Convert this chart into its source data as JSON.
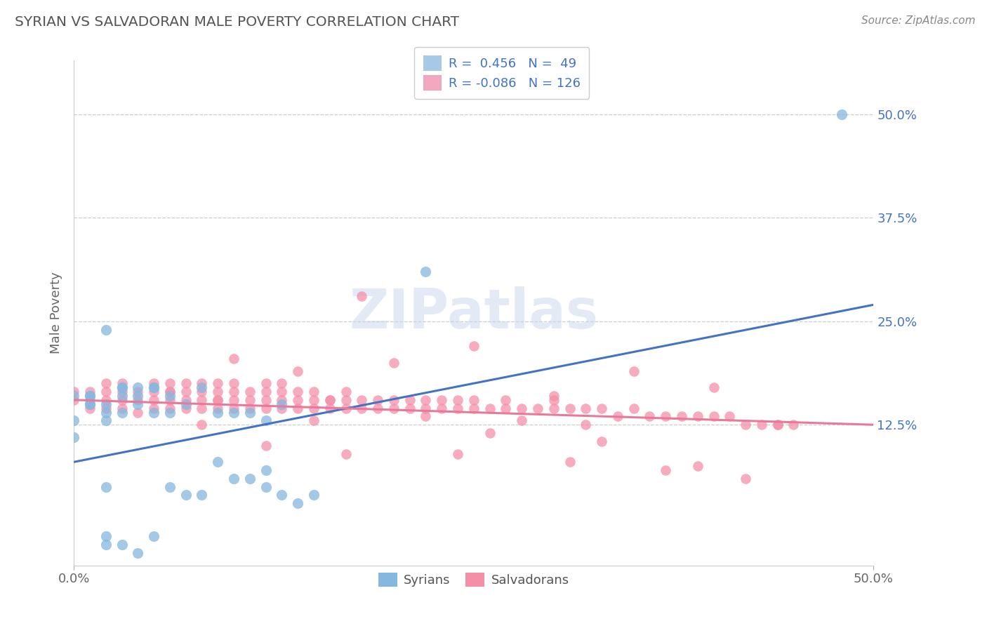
{
  "title": "SYRIAN VS SALVADORAN MALE POVERTY CORRELATION CHART",
  "source": "Source: ZipAtlas.com",
  "ylabel": "Male Poverty",
  "xlim": [
    0.0,
    0.5
  ],
  "ylim": [
    -0.045,
    0.565
  ],
  "ytick_positions": [
    0.125,
    0.25,
    0.375,
    0.5
  ],
  "ytick_labels_right": [
    "12.5%",
    "25.0%",
    "37.5%",
    "50.0%"
  ],
  "bottom_legend": [
    "Syrians",
    "Salvadorans"
  ],
  "syrian_color": "#85b8e0",
  "salvadoran_color": "#f48fa8",
  "syrian_line_color": "#4472c4",
  "salvadoran_line_color": "#e8799a",
  "legend_box_blue": "#a8c8e8",
  "legend_box_pink": "#f4a8be",
  "watermark_text": "ZIPatlas",
  "syrian_R": 0.456,
  "syrian_N": 49,
  "salvadoran_R": -0.086,
  "salvadoran_N": 126,
  "syrian_x": [
    0.01,
    0.02,
    0.03,
    0.04,
    0.05,
    0.06,
    0.07,
    0.08,
    0.09,
    0.1,
    0.11,
    0.12,
    0.13,
    0.0,
    0.01,
    0.02,
    0.03,
    0.04,
    0.05,
    0.06,
    0.0,
    0.01,
    0.02,
    0.03,
    0.0,
    0.01,
    0.02,
    0.03,
    0.04,
    0.05,
    0.06,
    0.07,
    0.08,
    0.09,
    0.1,
    0.11,
    0.12,
    0.13,
    0.14,
    0.15,
    0.02,
    0.03,
    0.04,
    0.05,
    0.22,
    0.02,
    0.02,
    0.48,
    0.12
  ],
  "syrian_y": [
    0.15,
    0.24,
    0.17,
    0.16,
    0.17,
    0.16,
    0.15,
    0.17,
    0.14,
    0.14,
    0.14,
    0.13,
    0.15,
    0.13,
    0.15,
    0.14,
    0.14,
    0.17,
    0.17,
    0.14,
    0.11,
    0.16,
    0.13,
    0.16,
    0.16,
    0.16,
    0.15,
    0.17,
    0.15,
    0.14,
    0.05,
    0.04,
    0.04,
    0.08,
    0.06,
    0.06,
    0.07,
    0.04,
    0.03,
    0.04,
    -0.01,
    -0.02,
    -0.03,
    -0.01,
    0.31,
    0.05,
    -0.02,
    0.5,
    0.05
  ],
  "salvadoran_x": [
    0.0,
    0.0,
    0.01,
    0.01,
    0.01,
    0.02,
    0.02,
    0.02,
    0.02,
    0.03,
    0.03,
    0.03,
    0.03,
    0.04,
    0.04,
    0.04,
    0.05,
    0.05,
    0.05,
    0.05,
    0.06,
    0.06,
    0.06,
    0.06,
    0.07,
    0.07,
    0.07,
    0.07,
    0.08,
    0.08,
    0.08,
    0.08,
    0.09,
    0.09,
    0.09,
    0.09,
    0.1,
    0.1,
    0.1,
    0.1,
    0.11,
    0.11,
    0.11,
    0.12,
    0.12,
    0.12,
    0.12,
    0.13,
    0.13,
    0.13,
    0.13,
    0.14,
    0.14,
    0.14,
    0.15,
    0.15,
    0.15,
    0.16,
    0.16,
    0.17,
    0.17,
    0.17,
    0.18,
    0.18,
    0.19,
    0.19,
    0.2,
    0.2,
    0.21,
    0.21,
    0.22,
    0.22,
    0.23,
    0.23,
    0.24,
    0.24,
    0.25,
    0.25,
    0.26,
    0.27,
    0.27,
    0.28,
    0.29,
    0.3,
    0.3,
    0.31,
    0.32,
    0.33,
    0.34,
    0.35,
    0.36,
    0.37,
    0.38,
    0.39,
    0.4,
    0.41,
    0.42,
    0.43,
    0.44,
    0.44,
    0.45,
    0.32,
    0.18,
    0.1,
    0.14,
    0.2,
    0.25,
    0.3,
    0.35,
    0.4,
    0.15,
    0.22,
    0.28,
    0.08,
    0.12,
    0.17,
    0.24,
    0.31,
    0.37,
    0.42,
    0.06,
    0.09,
    0.16,
    0.26,
    0.33,
    0.39
  ],
  "salvadoran_y": [
    0.155,
    0.165,
    0.145,
    0.155,
    0.165,
    0.145,
    0.155,
    0.165,
    0.175,
    0.145,
    0.155,
    0.165,
    0.175,
    0.14,
    0.155,
    0.165,
    0.145,
    0.155,
    0.165,
    0.175,
    0.145,
    0.155,
    0.165,
    0.175,
    0.145,
    0.155,
    0.165,
    0.175,
    0.145,
    0.155,
    0.165,
    0.175,
    0.145,
    0.155,
    0.165,
    0.175,
    0.145,
    0.155,
    0.165,
    0.175,
    0.145,
    0.155,
    0.165,
    0.145,
    0.155,
    0.165,
    0.175,
    0.145,
    0.155,
    0.165,
    0.175,
    0.145,
    0.155,
    0.165,
    0.145,
    0.155,
    0.165,
    0.145,
    0.155,
    0.145,
    0.155,
    0.165,
    0.145,
    0.155,
    0.145,
    0.155,
    0.145,
    0.155,
    0.145,
    0.155,
    0.145,
    0.155,
    0.145,
    0.155,
    0.145,
    0.155,
    0.145,
    0.155,
    0.145,
    0.145,
    0.155,
    0.145,
    0.145,
    0.145,
    0.155,
    0.145,
    0.145,
    0.145,
    0.135,
    0.145,
    0.135,
    0.135,
    0.135,
    0.135,
    0.135,
    0.135,
    0.125,
    0.125,
    0.125,
    0.125,
    0.125,
    0.125,
    0.28,
    0.205,
    0.19,
    0.2,
    0.22,
    0.16,
    0.19,
    0.17,
    0.13,
    0.135,
    0.13,
    0.125,
    0.1,
    0.09,
    0.09,
    0.08,
    0.07,
    0.06,
    0.165,
    0.155,
    0.155,
    0.115,
    0.105,
    0.075
  ]
}
